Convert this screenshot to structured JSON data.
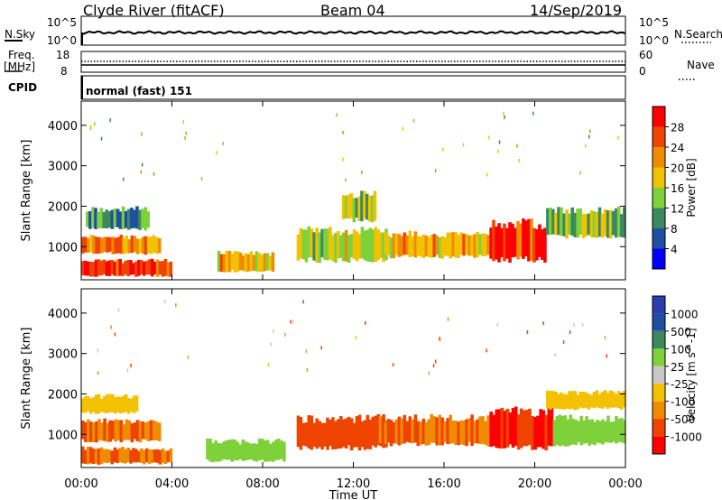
{
  "header": {
    "station": "Clyde River (fitACF)",
    "beam": "Beam 04",
    "date": "14/Sep/2019"
  },
  "panel_nsky": {
    "left_label": "N.Sky",
    "right_label": "N.Search",
    "left_ticks": [
      "10^5",
      "10^0"
    ],
    "right_ticks": [
      "10^5",
      "10^0"
    ]
  },
  "panel_freq": {
    "left_label_1": "Freq.",
    "left_label_2": "[MHz]",
    "right_label": "Nave",
    "left_ticks": [
      "18",
      "8"
    ],
    "right_ticks": [
      "60",
      "0"
    ]
  },
  "panel_cpid": {
    "label": "CPID",
    "mode": "normal (fast) 151"
  },
  "colors": {
    "power_scale": [
      "#0000ff",
      "#1f4fa0",
      "#3a8a5e",
      "#7fd13b",
      "#f2c200",
      "#f08b00",
      "#ee4400",
      "#ff0000"
    ],
    "velocity_scale": [
      "#ff0000",
      "#ee4400",
      "#f08b00",
      "#f2c200",
      "#c8c8c8",
      "#7fd13b",
      "#3a8a5e",
      "#1f4fa0",
      "#2a3cb0"
    ]
  },
  "chart_data": [
    {
      "type": "heatmap",
      "name": "power",
      "ylabel": "Slant Range [km]",
      "y_ticks": [
        "1000",
        "2000",
        "3000",
        "4000"
      ],
      "ylim": [
        180,
        4600
      ],
      "xlim": [
        "00:00",
        "24:00"
      ],
      "colorbar_label": "Power [dB]",
      "colorbar_ticks": [
        "4",
        "8",
        "12",
        "16",
        "20",
        "24",
        "28"
      ],
      "colorbar_range": [
        0,
        32
      ],
      "bands": [
        {
          "start_h": 0.0,
          "end_h": 4.0,
          "range_km": [
            250,
            700
          ],
          "value": 28
        },
        {
          "start_h": 0.0,
          "end_h": 3.5,
          "range_km": [
            800,
            1300
          ],
          "value": 22
        },
        {
          "start_h": 0.2,
          "end_h": 3.0,
          "range_km": [
            1400,
            2000
          ],
          "value": 10
        },
        {
          "start_h": 6.0,
          "end_h": 8.5,
          "range_km": [
            350,
            900
          ],
          "value": 20
        },
        {
          "start_h": 9.5,
          "end_h": 13.5,
          "range_km": [
            600,
            1500
          ],
          "value": 16
        },
        {
          "start_h": 11.5,
          "end_h": 13.0,
          "range_km": [
            1600,
            2400
          ],
          "value": 14
        },
        {
          "start_h": 13.0,
          "end_h": 18.0,
          "range_km": [
            700,
            1400
          ],
          "value": 20
        },
        {
          "start_h": 18.0,
          "end_h": 20.5,
          "range_km": [
            600,
            1700
          ],
          "value": 28
        },
        {
          "start_h": 20.5,
          "end_h": 24.0,
          "range_km": [
            1200,
            2000
          ],
          "value": 14
        }
      ]
    },
    {
      "type": "heatmap",
      "name": "velocity",
      "ylabel": "Slant Range [km]",
      "y_ticks": [
        "1000",
        "2000",
        "3000",
        "4000"
      ],
      "ylim": [
        180,
        4600
      ],
      "xlim": [
        "00:00",
        "24:00"
      ],
      "xlabel": "Time UT",
      "x_ticks": [
        "00:00",
        "04:00",
        "08:00",
        "12:00",
        "16:00",
        "20:00",
        "00:00"
      ],
      "colorbar_label": "Velocity [m s^-1]",
      "colorbar_ticks": [
        "1000",
        "500",
        "100",
        "25",
        "-25",
        "-100",
        "-500",
        "-1000"
      ],
      "bands": [
        {
          "start_h": 0.0,
          "end_h": 4.0,
          "range_km": [
            250,
            700
          ],
          "value": -100
        },
        {
          "start_h": 0.0,
          "end_h": 3.5,
          "range_km": [
            800,
            1400
          ],
          "value": -100
        },
        {
          "start_h": 0.0,
          "end_h": 2.5,
          "range_km": [
            1500,
            2000
          ],
          "value": 0
        },
        {
          "start_h": 5.5,
          "end_h": 9.0,
          "range_km": [
            300,
            900
          ],
          "value": 250
        },
        {
          "start_h": 9.5,
          "end_h": 13.5,
          "range_km": [
            600,
            1500
          ],
          "value": -300
        },
        {
          "start_h": 13.0,
          "end_h": 18.0,
          "range_km": [
            700,
            1500
          ],
          "value": -100
        },
        {
          "start_h": 18.0,
          "end_h": 20.8,
          "range_km": [
            600,
            1700
          ],
          "value": -500
        },
        {
          "start_h": 20.8,
          "end_h": 24.0,
          "range_km": [
            700,
            1500
          ],
          "value": 300
        },
        {
          "start_h": 20.5,
          "end_h": 24.0,
          "range_km": [
            1600,
            2100
          ],
          "value": 0
        }
      ]
    }
  ]
}
